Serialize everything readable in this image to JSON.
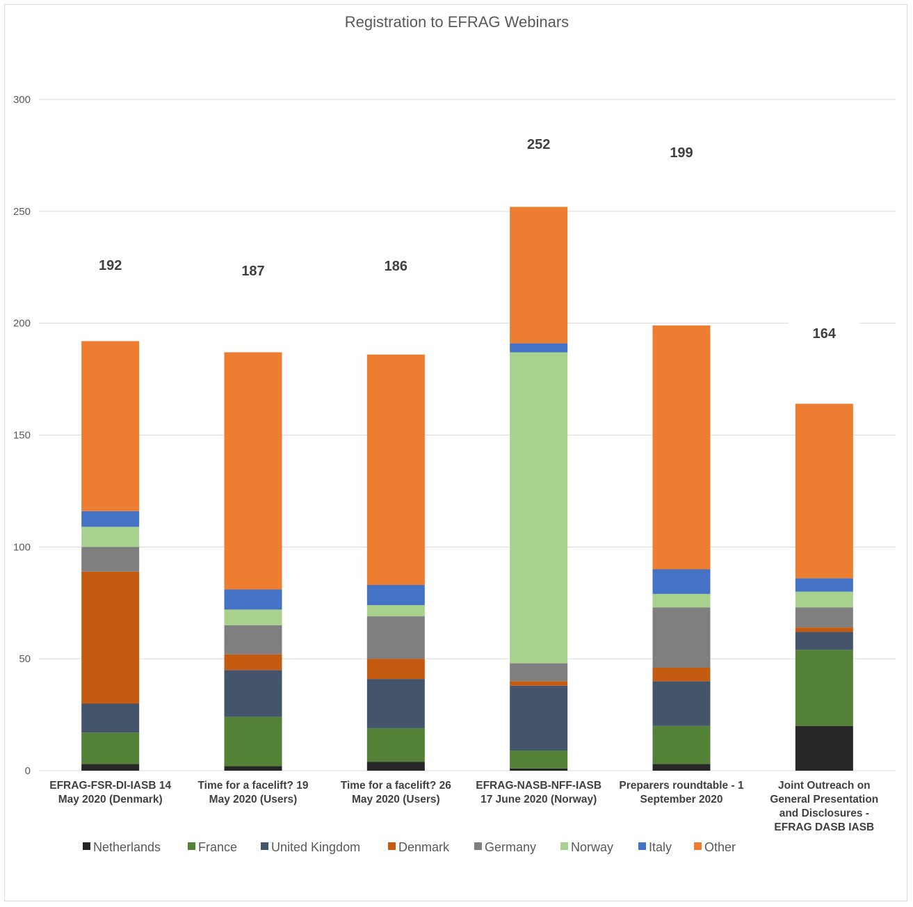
{
  "chart_data": {
    "type": "bar",
    "stacked": true,
    "title": "Registration to EFRAG Webinars",
    "xlabel": "",
    "ylabel": "",
    "ylim": [
      0,
      300
    ],
    "yticks": [
      "0",
      "50",
      "100",
      "150",
      "200",
      "250",
      "300"
    ],
    "grid": true,
    "legend_position": "bottom",
    "categories": [
      [
        "EFRAG-FSR-DI-IASB 14",
        "May 2020 (Denmark)"
      ],
      [
        "Time for a facelift? 19",
        "May 2020 (Users)"
      ],
      [
        "Time for a facelift? 26",
        "May 2020 (Users)"
      ],
      [
        "EFRAG-NASB-NFF-IASB",
        "17 June 2020 (Norway)"
      ],
      [
        "Preparers roundtable - 1",
        "September 2020"
      ],
      [
        "Joint Outreach on",
        "General Presentation",
        "and Disclosures -",
        "EFRAG DASB IASB"
      ]
    ],
    "totals": [
      "192",
      "187",
      "186",
      "252",
      "199",
      "164"
    ],
    "series": [
      {
        "name": "Netherlands",
        "color": "#262626",
        "values": [
          3,
          2,
          4,
          1,
          3,
          20
        ]
      },
      {
        "name": "France",
        "color": "#538135",
        "values": [
          14,
          22,
          15,
          8,
          17,
          34
        ]
      },
      {
        "name": "United Kingdom",
        "color": "#44546a",
        "values": [
          13,
          21,
          22,
          29,
          20,
          8
        ]
      },
      {
        "name": "Denmark",
        "color": "#c55a11",
        "values": [
          59,
          7,
          9,
          2,
          6,
          2
        ]
      },
      {
        "name": "Germany",
        "color": "#7f7f7f",
        "values": [
          11,
          13,
          19,
          8,
          27,
          9
        ]
      },
      {
        "name": "Norway",
        "color": "#a9d18e",
        "values": [
          9,
          7,
          5,
          139,
          6,
          7
        ]
      },
      {
        "name": "Italy",
        "color": "#4472c4",
        "values": [
          7,
          9,
          9,
          4,
          11,
          6
        ]
      },
      {
        "name": "Other",
        "color": "#ed7d31",
        "values": [
          76,
          106,
          103,
          61,
          109,
          78
        ]
      }
    ]
  }
}
